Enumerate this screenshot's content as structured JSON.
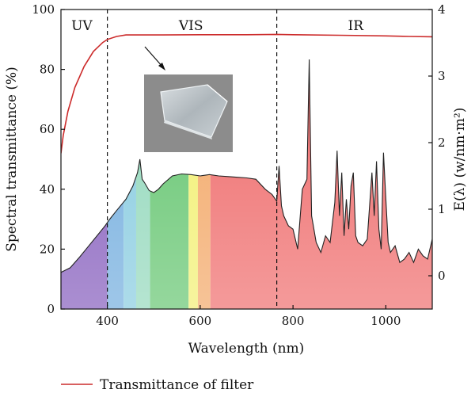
{
  "chart_data": {
    "type": "area",
    "xlabel": "Wavelength (nm)",
    "ylabel": "Spectral transmittance (%)",
    "ylabel_right": "E(λ) (w/nm·m²)",
    "xlim": [
      300,
      1100
    ],
    "ylim": [
      0,
      100
    ],
    "ylim_right": [
      -0.5,
      4
    ],
    "x_ticks": [
      400,
      600,
      800,
      1000
    ],
    "y_ticks": [
      0,
      20,
      40,
      60,
      80,
      100
    ],
    "y_ticks_right": [
      0,
      1,
      2,
      3,
      4
    ],
    "region_dividers": [
      400,
      765
    ],
    "region_labels": [
      {
        "text": "UV",
        "x": 345
      },
      {
        "text": "VIS",
        "x": 580
      },
      {
        "text": "IR",
        "x": 935
      }
    ],
    "legend": {
      "label": "Transmittance of filter",
      "color": "#cc2b2b",
      "position": "bottom"
    },
    "series": [
      {
        "name": "Transmittance of filter",
        "axis": "left",
        "color": "#cc2b2b",
        "x": [
          300,
          305,
          315,
          330,
          350,
          370,
          390,
          400,
          420,
          440,
          470,
          520,
          600,
          700,
          765,
          800,
          900,
          1000,
          1050,
          1100
        ],
        "y": [
          52,
          58,
          66,
          74,
          81,
          86,
          89,
          90,
          91,
          91.5,
          91.5,
          91.5,
          91.6,
          91.6,
          91.7,
          91.6,
          91.4,
          91.2,
          91.0,
          90.9
        ]
      },
      {
        "axis": "right",
        "color": "#222222",
        "x": [
          300,
          320,
          340,
          360,
          380,
          395,
          405,
          420,
          440,
          455,
          465,
          470,
          475,
          480,
          490,
          500,
          510,
          520,
          540,
          560,
          580,
          600,
          620,
          640,
          660,
          680,
          700,
          720,
          740,
          755,
          765,
          770,
          775,
          780,
          790,
          800,
          810,
          820,
          830,
          835,
          840,
          850,
          860,
          870,
          880,
          890,
          895,
          900,
          905,
          910,
          915,
          920,
          925,
          930,
          935,
          940,
          950,
          960,
          970,
          975,
          980,
          985,
          990,
          995,
          1000,
          1005,
          1010,
          1020,
          1030,
          1040,
          1050,
          1060,
          1070,
          1080,
          1090,
          1100
        ],
        "y": [
          0.05,
          0.12,
          0.28,
          0.45,
          0.62,
          0.75,
          0.85,
          0.98,
          1.15,
          1.35,
          1.55,
          1.75,
          1.45,
          1.4,
          1.28,
          1.25,
          1.3,
          1.38,
          1.5,
          1.53,
          1.52,
          1.5,
          1.52,
          1.5,
          1.49,
          1.48,
          1.47,
          1.45,
          1.3,
          1.22,
          1.12,
          1.65,
          1.05,
          0.9,
          0.75,
          0.7,
          0.4,
          1.3,
          1.45,
          3.25,
          0.9,
          0.5,
          0.35,
          0.6,
          0.5,
          1.1,
          1.88,
          0.9,
          1.55,
          0.6,
          1.15,
          0.7,
          1.35,
          1.55,
          0.6,
          0.5,
          0.45,
          0.55,
          1.55,
          0.9,
          1.72,
          0.7,
          0.4,
          1.85,
          1.15,
          0.5,
          0.35,
          0.45,
          0.2,
          0.25,
          0.35,
          0.2,
          0.4,
          0.3,
          0.25,
          0.55
        ]
      }
    ],
    "spectrum_bands": [
      {
        "from": 300,
        "to": 400,
        "color": "#7d52b8"
      },
      {
        "from": 400,
        "to": 435,
        "color": "#6aa8dc"
      },
      {
        "from": 435,
        "to": 462,
        "color": "#80c8de"
      },
      {
        "from": 462,
        "to": 492,
        "color": "#8dd6b8"
      },
      {
        "from": 492,
        "to": 575,
        "color": "#5cc268"
      },
      {
        "from": 575,
        "to": 595,
        "color": "#f1ef6a"
      },
      {
        "from": 595,
        "to": 622,
        "color": "#f2a35f"
      },
      {
        "from": 622,
        "to": 1100,
        "color": "#ee6464"
      }
    ]
  }
}
